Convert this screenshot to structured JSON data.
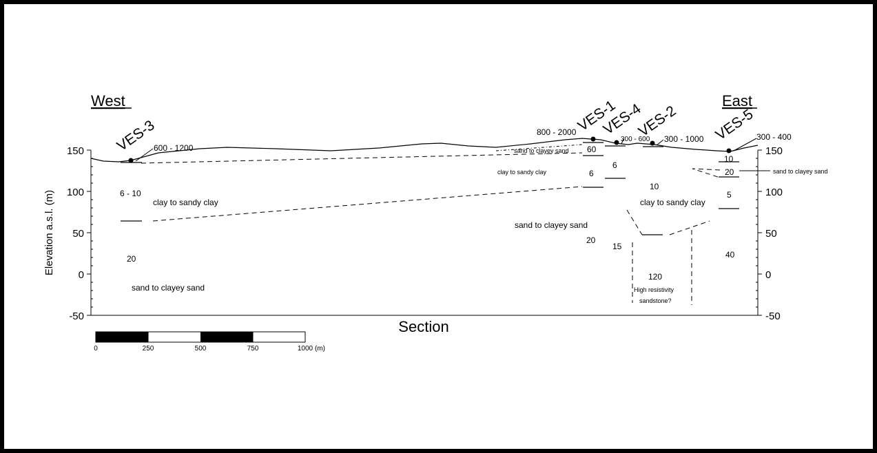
{
  "title": "",
  "directions": {
    "west": "West",
    "east": "East"
  },
  "axis": {
    "ylabel": "Elevation a.s.l. (m)",
    "xlabel": "Section",
    "ticks": [
      "150",
      "100",
      "50",
      "0",
      "-50"
    ]
  },
  "scale_bar": {
    "labels": [
      "0",
      "250",
      "500",
      "750",
      "1000"
    ],
    "unit": "(m)"
  },
  "ves_labels": [
    "VES-3",
    "VES-1",
    "VES-4",
    "VES-2",
    "VES-5"
  ],
  "surface_resistivities": [
    "600 - 1200",
    "800 - 2000",
    "300 - 600",
    "300 - 1000",
    "300 - 400"
  ],
  "layer_values": [
    "6 - 10",
    "20",
    "60",
    "6",
    "6",
    "10",
    "20",
    "15",
    "120",
    "10",
    "20",
    "5",
    "40"
  ],
  "lithology": {
    "clay_sandy_west": "clay to sandy clay",
    "sand_clayey_west": "sand to clayey sand",
    "sand_clayey_top": "sand to clayey sand",
    "clay_sandy_small": "clay to sandy clay",
    "clay_sandy_mid": "clay to sandy clay",
    "sand_clayey_mid": "sand to clayey sand",
    "high_res_1": "High resistivity",
    "high_res_2": "sandstone?",
    "sand_clayey_east": "sand to clayey sand"
  }
}
